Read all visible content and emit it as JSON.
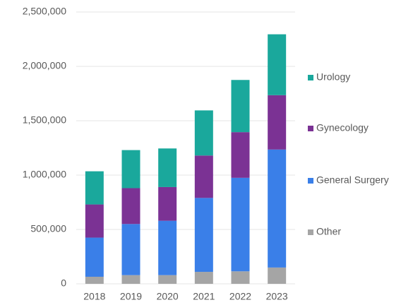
{
  "chart_data": {
    "type": "stacked_bar",
    "categories": [
      "2018",
      "2019",
      "2020",
      "2021",
      "2022",
      "2023"
    ],
    "series": [
      {
        "name": "Other",
        "color": "#a5a5a5",
        "values": [
          65000,
          80000,
          80000,
          110000,
          115000,
          150000
        ]
      },
      {
        "name": "General Surgery",
        "color": "#3a7fe8",
        "values": [
          360000,
          470000,
          500000,
          680000,
          860000,
          1085000
        ]
      },
      {
        "name": "Gynecology",
        "color": "#7b3294",
        "values": [
          305000,
          330000,
          310000,
          390000,
          420000,
          500000
        ]
      },
      {
        "name": "Urology",
        "color": "#1aa89c",
        "values": [
          305000,
          350000,
          355000,
          415000,
          480000,
          560000
        ]
      }
    ],
    "ylim": [
      0,
      2500000
    ],
    "yticks": [
      0,
      {
        "value": 500000,
        "label": "500,000"
      },
      {
        "value": 1000000,
        "label": "1,000,000"
      },
      {
        "value": 1500000,
        "label": "1,500,000"
      },
      {
        "value": 2000000,
        "label": "2,000,000"
      },
      {
        "value": 2500000,
        "label": "2,500,000"
      }
    ],
    "grid": true,
    "legend": "right"
  }
}
